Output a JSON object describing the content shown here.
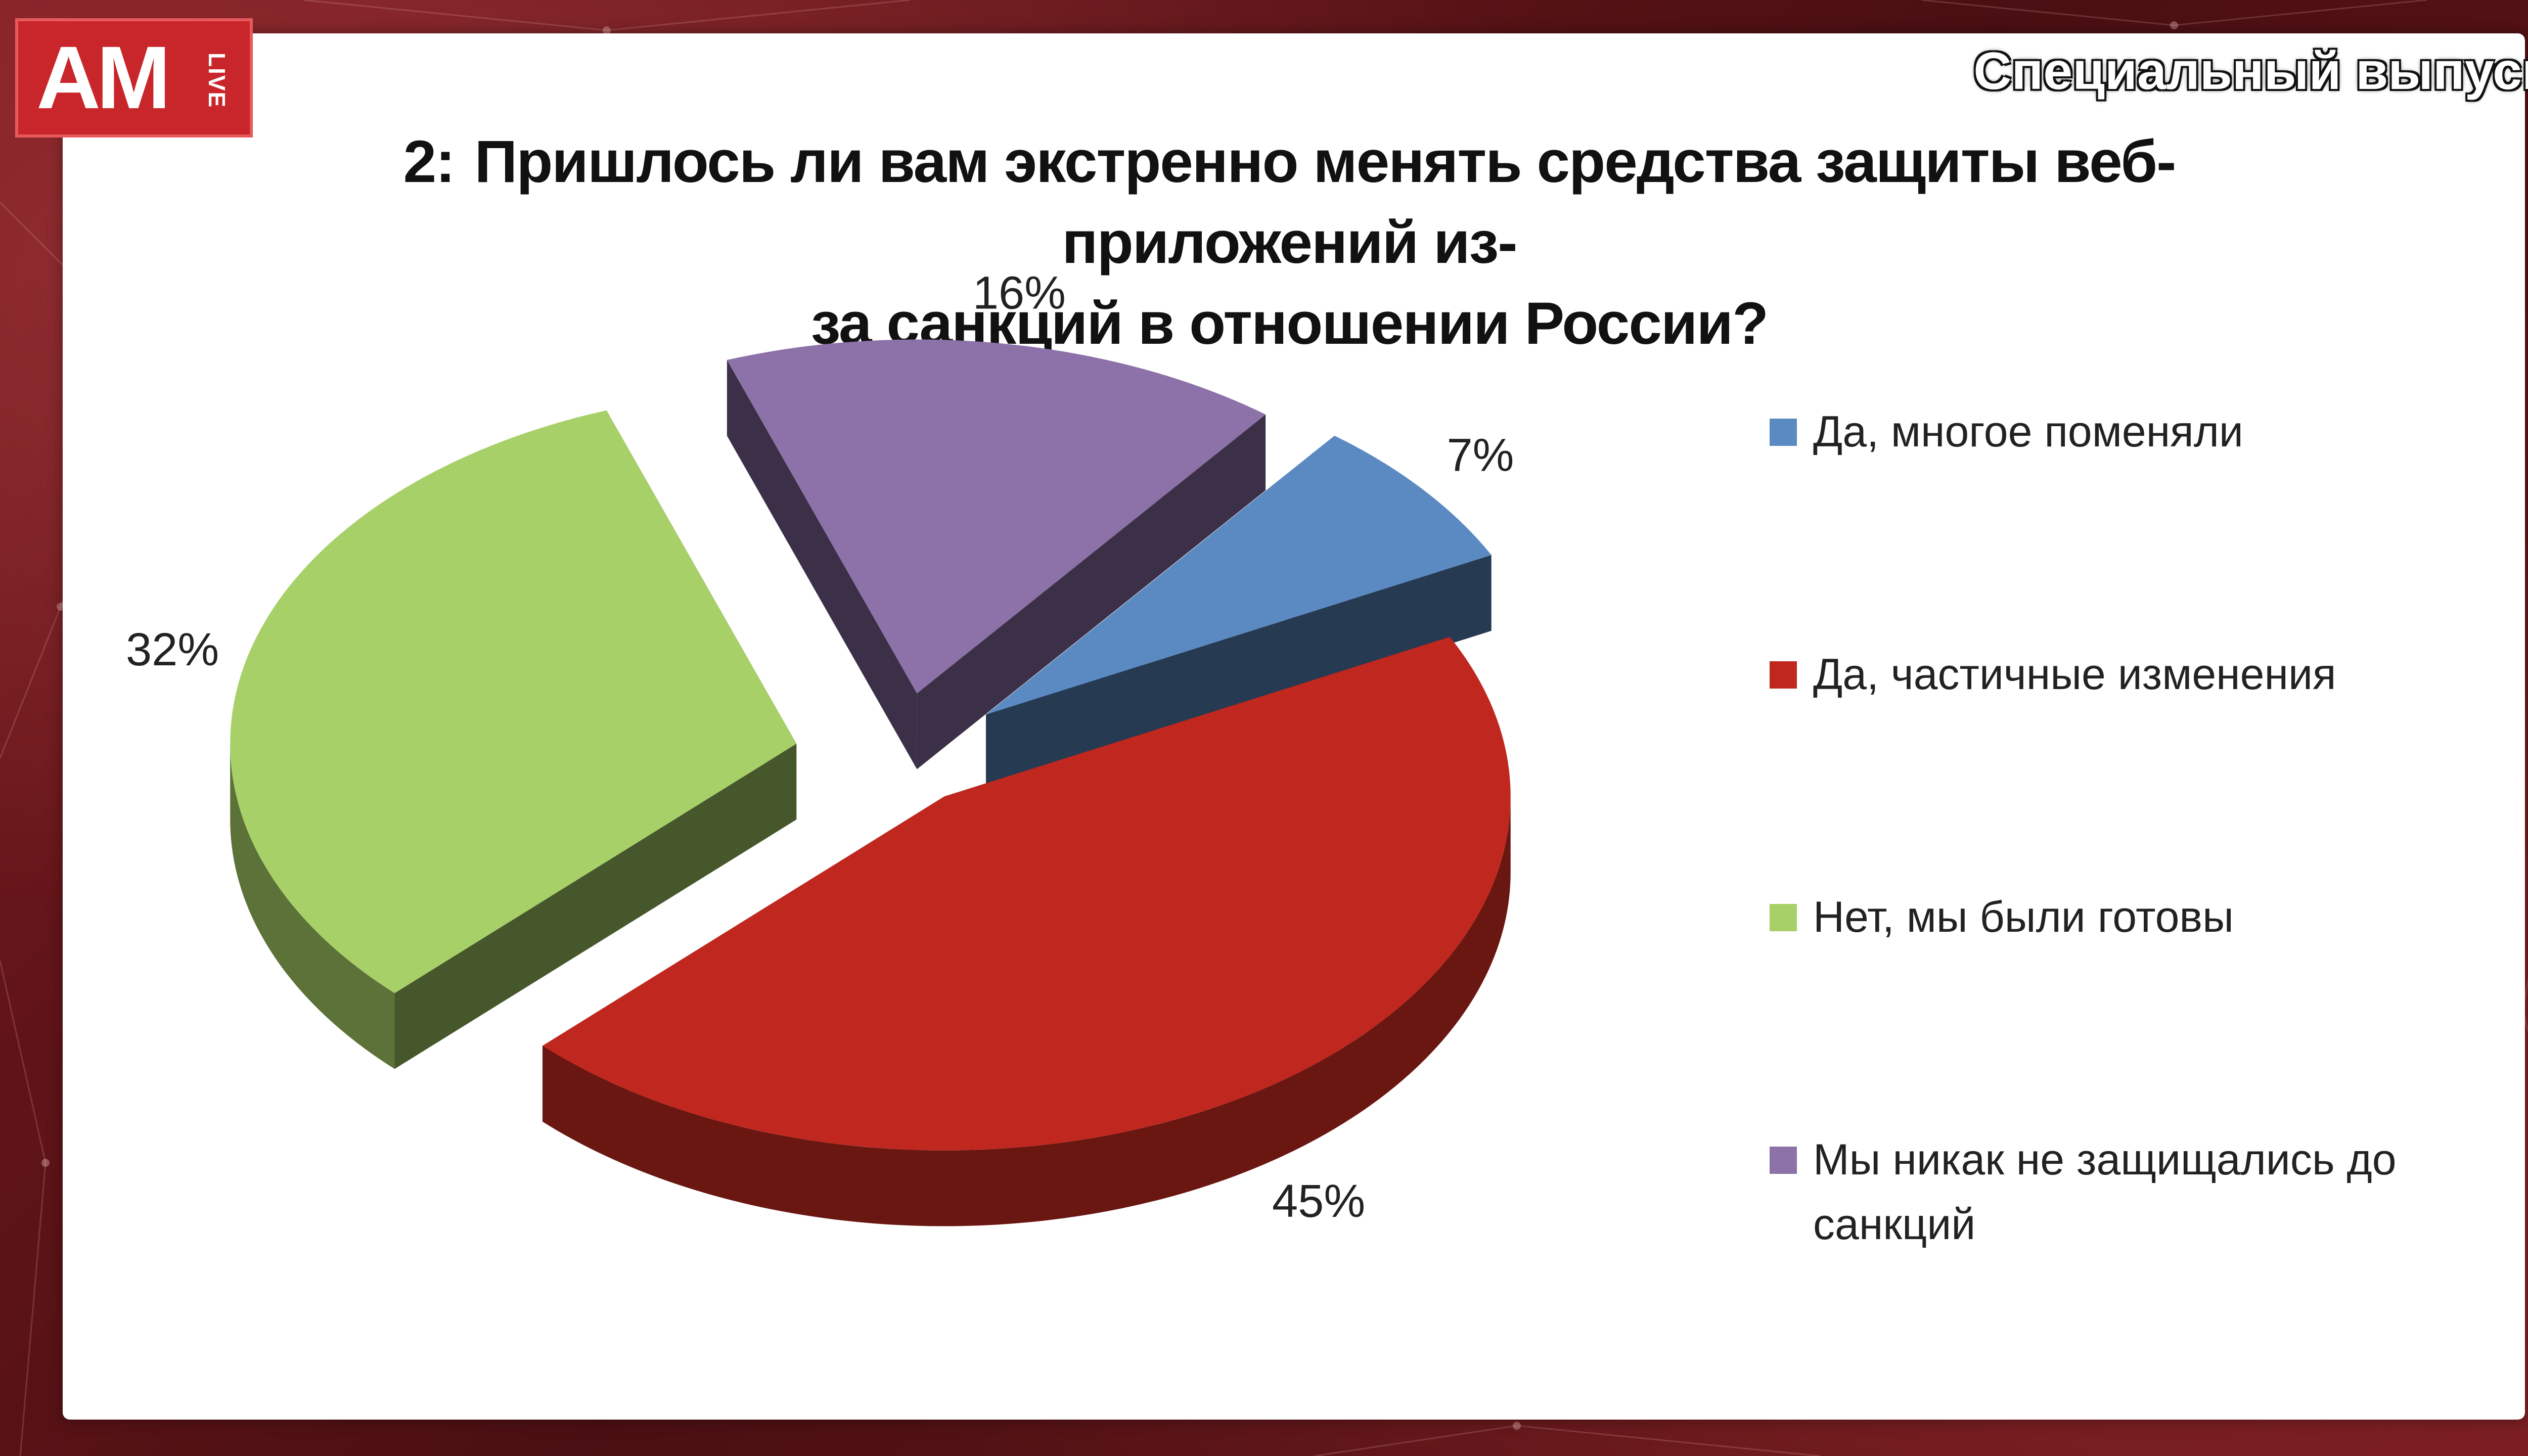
{
  "branding": {
    "logo_text": "AM",
    "logo_sub": "LIVE",
    "overlay_label": "Специальный выпуск"
  },
  "slide": {
    "question_number": "2:",
    "title_line1": "Пришлось ли вам экстренно менять средства защиты веб-приложений из-",
    "title_line2": "за санкций в отношении России?"
  },
  "colors": {
    "blue": "#5b8ac3",
    "red": "#c0281f",
    "green": "#a7d068",
    "purple": "#8c72a8"
  },
  "chart_data": {
    "type": "pie",
    "title": "Пришлось ли вам экстренно менять средства защиты веб-приложений из-за санкций в отношении России?",
    "unit": "%",
    "legend_position": "right",
    "slices": [
      {
        "label": "Да, многое поменяли",
        "value": 7,
        "value_label": "7%",
        "color": "#5b8ac3"
      },
      {
        "label": "Да, частичные изменения",
        "value": 45,
        "value_label": "45%",
        "color": "#c0281f"
      },
      {
        "label": "Нет, мы были готовы",
        "value": 32,
        "value_label": "32%",
        "color": "#a7d068"
      },
      {
        "label": "Мы никак не защищались до санкций",
        "value": 16,
        "value_label": "16%",
        "color": "#8c72a8"
      }
    ]
  }
}
